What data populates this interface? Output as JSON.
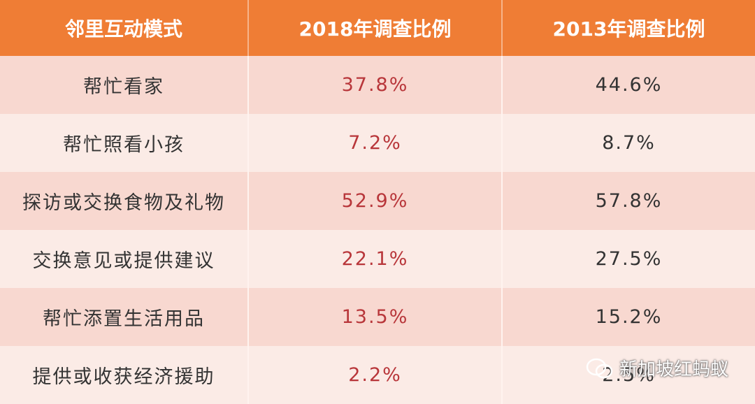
{
  "table": {
    "header": [
      "邻里互动模式",
      "2018年调查比例",
      "2013年调查比例"
    ],
    "rows": [
      [
        "帮忙看家",
        "37.8%",
        "44.6%"
      ],
      [
        "帮忙照看小孩",
        "7.2%",
        "8.7%"
      ],
      [
        "探访或交换食物及礼物",
        "52.9%",
        "57.8%"
      ],
      [
        "交换意见或提供建议",
        "22.1%",
        "27.5%"
      ],
      [
        "帮忙添置生活用品",
        "13.5%",
        "15.2%"
      ],
      [
        "提供或收获经济援助",
        "2.2%",
        "2.5%"
      ]
    ]
  },
  "watermark": "新加坡红蚂蚁"
}
